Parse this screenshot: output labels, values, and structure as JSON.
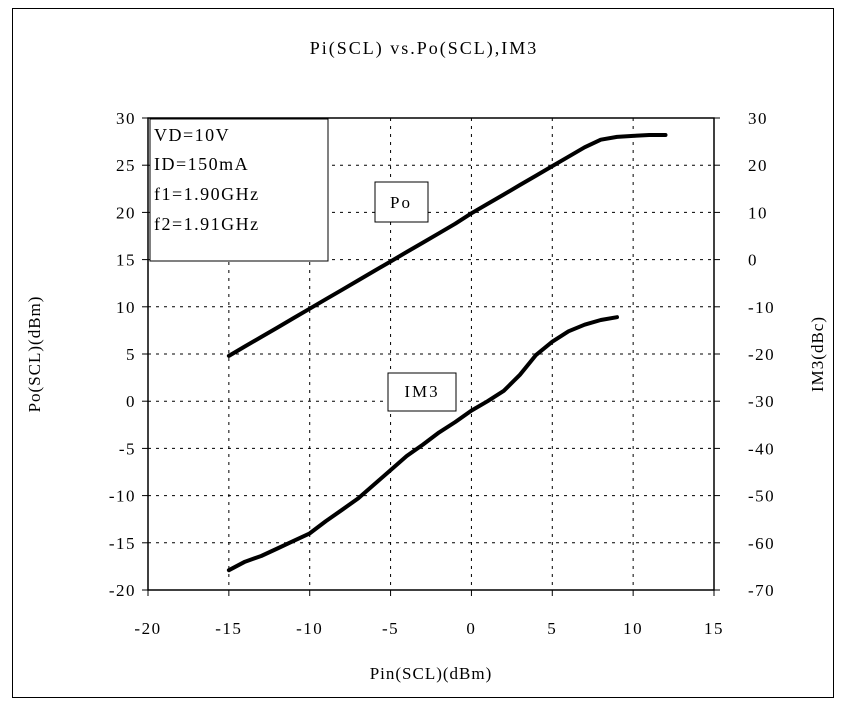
{
  "chart_data": {
    "type": "line",
    "title": "Pi(SCL) vs.Po(SCL),IM3",
    "xlabel": "Pin(SCL)(dBm)",
    "ylabel": "Po(SCL)(dBm)",
    "y2label": "IM3(dBc)",
    "xlim": [
      -20,
      15
    ],
    "ylim": [
      -20,
      30
    ],
    "y2lim": [
      -70,
      30
    ],
    "x_ticks": [
      -20,
      -15,
      -10,
      -5,
      0,
      5,
      10,
      15
    ],
    "y_ticks": [
      -20,
      -15,
      -10,
      -5,
      0,
      5,
      10,
      15,
      20,
      25,
      30
    ],
    "y2_ticks": [
      -70,
      -60,
      -50,
      -40,
      -30,
      -20,
      -10,
      0,
      10,
      20,
      30
    ],
    "grid": true,
    "info_box": [
      "VD=10V",
      "ID=150mA",
      "f1=1.90GHz",
      "f2=1.91GHz"
    ],
    "series": [
      {
        "name": "Po",
        "axis": "left",
        "x": [
          -15,
          -14,
          -13,
          -12,
          -11,
          -10,
          -9,
          -8,
          -7,
          -6,
          -5,
          -4,
          -3,
          -2,
          -1,
          0,
          1,
          2,
          3,
          4,
          5,
          6,
          7,
          8,
          9,
          10,
          11,
          12
        ],
        "y": [
          4.8,
          5.8,
          6.8,
          7.8,
          8.8,
          9.8,
          10.8,
          11.8,
          12.8,
          13.8,
          14.8,
          15.8,
          16.8,
          17.8,
          18.8,
          19.9,
          20.9,
          21.9,
          22.9,
          23.9,
          24.9,
          25.9,
          26.9,
          27.7,
          28.0,
          28.1,
          28.2,
          28.2
        ]
      },
      {
        "name": "IM3",
        "axis": "right",
        "x": [
          -15,
          -14,
          -13,
          -12,
          -11,
          -10,
          -9,
          -8,
          -7,
          -6,
          -5,
          -4,
          -3,
          -2,
          -1,
          0,
          1,
          2,
          3,
          4,
          5,
          6,
          7,
          8,
          9
        ],
        "y": [
          -65.8,
          -64.0,
          -62.8,
          -61.2,
          -59.6,
          -58.0,
          -55.4,
          -53.0,
          -50.6,
          -47.6,
          -44.6,
          -41.6,
          -39.2,
          -36.6,
          -34.4,
          -32.0,
          -30.0,
          -27.8,
          -24.4,
          -20.2,
          -17.4,
          -15.2,
          -13.8,
          -12.8,
          -12.2
        ]
      }
    ]
  }
}
